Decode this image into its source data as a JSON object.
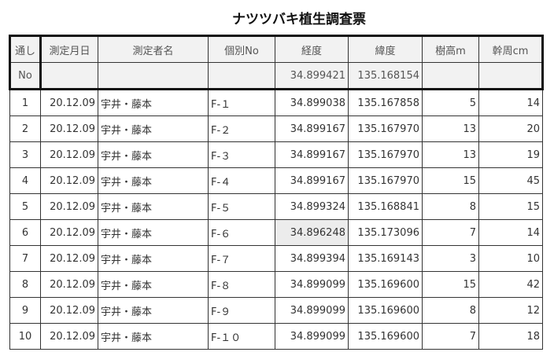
{
  "title": "ナツツバキ植生調査票",
  "header": {
    "no_top": "通し",
    "no_bottom": "No",
    "date": "測定月日",
    "surveyor": "測定者名",
    "id": "個別No",
    "longitude": "経度",
    "latitude": "緯度",
    "height": "樹高m",
    "girth": "幹周cm",
    "ref_longitude": "34.899421",
    "ref_latitude": "135.168154"
  },
  "rows": [
    {
      "no": "1",
      "date": "20.12.09",
      "surveyor": "宇井・藤本",
      "id": "F-１",
      "lon": "34.899038",
      "lat": "135.167858",
      "h": "5",
      "g": "14"
    },
    {
      "no": "2",
      "date": "20.12.09",
      "surveyor": "宇井・藤本",
      "id": "F-２",
      "lon": "34.899167",
      "lat": "135.167970",
      "h": "13",
      "g": "20"
    },
    {
      "no": "3",
      "date": "20.12.09",
      "surveyor": "宇井・藤本",
      "id": "F-３",
      "lon": "34.899167",
      "lat": "135.167970",
      "h": "13",
      "g": "19"
    },
    {
      "no": "4",
      "date": "20.12.09",
      "surveyor": "宇井・藤本",
      "id": "F-４",
      "lon": "34.899167",
      "lat": "135.167970",
      "h": "15",
      "g": "45"
    },
    {
      "no": "5",
      "date": "20.12.09",
      "surveyor": "宇井・藤本",
      "id": "F-５",
      "lon": "34.899324",
      "lat": "135.168841",
      "h": "8",
      "g": "15"
    },
    {
      "no": "6",
      "date": "20.12.09",
      "surveyor": "宇井・藤本",
      "id": "F-６",
      "lon": "34.896248",
      "lat": "135.173096",
      "h": "7",
      "g": "14"
    },
    {
      "no": "7",
      "date": "20.12.09",
      "surveyor": "宇井・藤本",
      "id": "F-７",
      "lon": "34.899394",
      "lat": "135.169143",
      "h": "3",
      "g": "10"
    },
    {
      "no": "8",
      "date": "20.12.09",
      "surveyor": "宇井・藤本",
      "id": "F-８",
      "lon": "34.899099",
      "lat": "135.169600",
      "h": "15",
      "g": "42"
    },
    {
      "no": "9",
      "date": "20.12.09",
      "surveyor": "宇井・藤本",
      "id": "F-９",
      "lon": "34.899099",
      "lat": "135.169600",
      "h": "8",
      "g": "12"
    },
    {
      "no": "10",
      "date": "20.12.09",
      "surveyor": "宇井・藤本",
      "id": "F-１０",
      "lon": "34.899099",
      "lat": "135.169600",
      "h": "7",
      "g": "18"
    }
  ]
}
